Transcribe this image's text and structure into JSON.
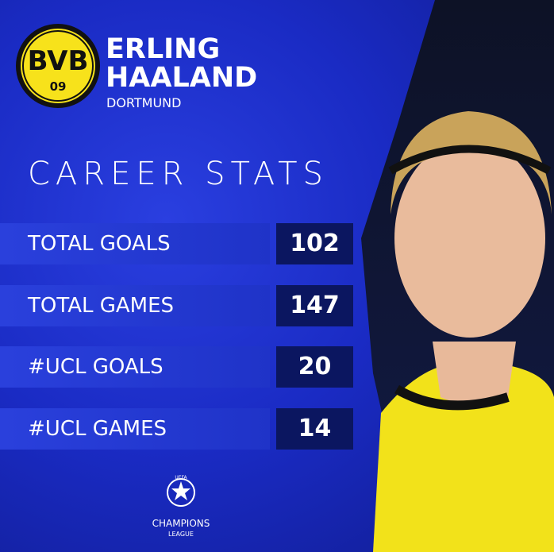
{
  "logo": {
    "letters": "BVB",
    "year": "09"
  },
  "player": {
    "first_name": "ERLING",
    "last_name": "HAALAND",
    "club": "DORTMUND"
  },
  "section_title": "CAREER STATS",
  "stats": [
    {
      "label": "TOTAL GOALS",
      "value": 102
    },
    {
      "label": "TOTAL GAMES",
      "value": 147
    },
    {
      "label": "#UCL GOALS",
      "value": 20
    },
    {
      "label": "#UCL GAMES",
      "value": 14
    }
  ],
  "footer": {
    "line1": "UEFA",
    "line2": "CHAMPIONS",
    "line3": "LEAGUE"
  }
}
